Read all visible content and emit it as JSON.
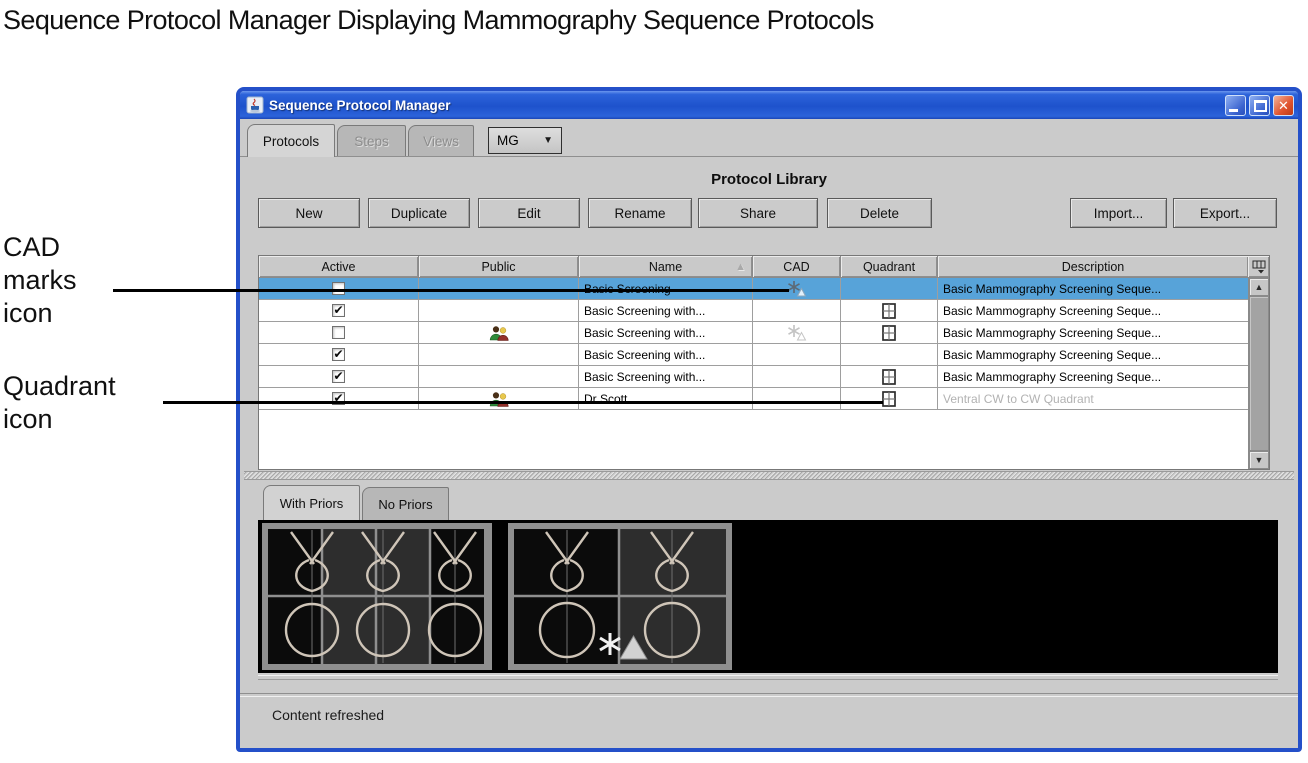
{
  "page": {
    "caption": "Sequence Protocol Manager Displaying Mammography Sequence Protocols",
    "callouts": [
      {
        "lines": [
          "CAD",
          "marks",
          "icon"
        ]
      },
      {
        "lines": [
          "Quadrant",
          "icon"
        ]
      }
    ]
  },
  "icons": {
    "close": "✕",
    "dropdown_arrow": "▼",
    "sort_ascending": "▲",
    "checkbox_check": "✔",
    "scroll_up": "▲",
    "scroll_down": "▼"
  },
  "window": {
    "title": "Sequence Protocol Manager",
    "tabs": [
      {
        "label": "Protocols",
        "state": "active"
      },
      {
        "label": "Steps",
        "state": "disabled"
      },
      {
        "label": "Views",
        "state": "disabled"
      }
    ],
    "modality_dropdown": {
      "value": "MG"
    },
    "library": {
      "heading": "Protocol Library",
      "toolbar_buttons": [
        "New",
        "Duplicate",
        "Edit",
        "Rename",
        "Share",
        "Delete"
      ],
      "io_buttons": [
        "Import...",
        "Export..."
      ]
    },
    "table": {
      "columns": [
        "Active",
        "Public",
        "Name",
        "CAD",
        "Quadrant",
        "Description"
      ],
      "sorted_by": "Name",
      "sort_direction": "ascending",
      "rows": [
        {
          "selected": true,
          "active": false,
          "public": false,
          "name": "Basic Screening",
          "cad": true,
          "cad_variant": "dark",
          "quadrant": false,
          "description": "Basic Mammography Screening Seque...",
          "description_muted": false
        },
        {
          "selected": false,
          "active": true,
          "public": false,
          "name": "Basic Screening with...",
          "cad": false,
          "cad_variant": "",
          "quadrant": true,
          "description": "Basic Mammography Screening Seque...",
          "description_muted": false
        },
        {
          "selected": false,
          "active": false,
          "public": true,
          "name": "Basic Screening with...",
          "cad": true,
          "cad_variant": "light",
          "quadrant": true,
          "description": "Basic Mammography Screening Seque...",
          "description_muted": false
        },
        {
          "selected": false,
          "active": true,
          "public": false,
          "name": "Basic Screening with...",
          "cad": false,
          "cad_variant": "",
          "quadrant": false,
          "description": "Basic Mammography Screening Seque...",
          "description_muted": false
        },
        {
          "selected": false,
          "active": true,
          "public": false,
          "name": "Basic Screening with...",
          "cad": false,
          "cad_variant": "",
          "quadrant": true,
          "description": "Basic Mammography Screening Seque...",
          "description_muted": false
        },
        {
          "selected": false,
          "active": true,
          "public": true,
          "name": "Dr Scott",
          "cad": false,
          "cad_variant": "",
          "quadrant": true,
          "description": "Ventral CW to CW Quadrant",
          "description_muted": true
        }
      ]
    },
    "preview": {
      "tabs": [
        {
          "label": "With Priors",
          "state": "active"
        },
        {
          "label": "No Priors",
          "state": "inactive"
        }
      ]
    },
    "status_bar": {
      "message": "Content refreshed"
    }
  },
  "colors": {
    "selection_blue": "#57a3d9",
    "titlebar_blue": "#2c63da",
    "window_border_blue": "#2450c9",
    "close_button_red": "#e0532e",
    "muted_text": "#b2b2b2"
  }
}
